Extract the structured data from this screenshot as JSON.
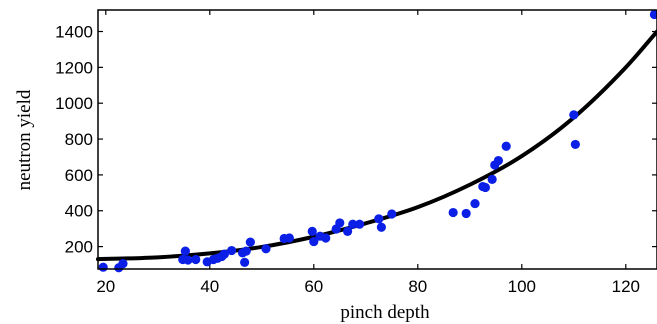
{
  "chart_data": {
    "type": "scatter",
    "xlabel": "pinch depth",
    "ylabel": "neutron yield",
    "xlim": [
      18.5,
      126
    ],
    "ylim": [
      75,
      1520
    ],
    "x_ticks": [
      20,
      40,
      60,
      80,
      100,
      120
    ],
    "y_ticks": [
      200,
      400,
      600,
      800,
      1000,
      1200,
      1400
    ],
    "grid": false,
    "colors": {
      "points": "#0b1fe6",
      "fit_line": "#000000"
    },
    "series": [
      {
        "type": "scatter",
        "points": [
          [
            19.5,
            85
          ],
          [
            22.5,
            82
          ],
          [
            23.3,
            105
          ],
          [
            34.8,
            128
          ],
          [
            35.3,
            175
          ],
          [
            35.8,
            125
          ],
          [
            37.3,
            128
          ],
          [
            39.5,
            115
          ],
          [
            40.7,
            128
          ],
          [
            41.5,
            135
          ],
          [
            42.3,
            145
          ],
          [
            42.8,
            158
          ],
          [
            44.2,
            178
          ],
          [
            46.3,
            165
          ],
          [
            46.7,
            112
          ],
          [
            47.0,
            175
          ],
          [
            47.8,
            225
          ],
          [
            50.8,
            188
          ],
          [
            54.3,
            245
          ],
          [
            55.3,
            248
          ],
          [
            59.7,
            285
          ],
          [
            60.0,
            228
          ],
          [
            61.2,
            258
          ],
          [
            62.3,
            248
          ],
          [
            64.3,
            298
          ],
          [
            65.0,
            332
          ],
          [
            66.5,
            285
          ],
          [
            67.5,
            325
          ],
          [
            68.8,
            325
          ],
          [
            72.5,
            355
          ],
          [
            73.0,
            308
          ],
          [
            75.0,
            382
          ],
          [
            86.8,
            390
          ],
          [
            89.3,
            385
          ],
          [
            91.0,
            440
          ],
          [
            92.5,
            535
          ],
          [
            93.0,
            530
          ],
          [
            94.3,
            575
          ],
          [
            94.8,
            655
          ],
          [
            95.5,
            680
          ],
          [
            97.0,
            760
          ],
          [
            110.0,
            935
          ],
          [
            110.3,
            770
          ],
          [
            125.5,
            1495
          ]
        ]
      },
      {
        "type": "line",
        "points": [
          [
            18.5,
            130
          ],
          [
            30,
            140
          ],
          [
            40,
            162
          ],
          [
            50,
            198
          ],
          [
            60,
            255
          ],
          [
            70,
            330
          ],
          [
            80,
            420
          ],
          [
            90,
            545
          ],
          [
            100,
            705
          ],
          [
            110,
            920
          ],
          [
            120,
            1200
          ],
          [
            126,
            1400
          ]
        ]
      }
    ]
  }
}
